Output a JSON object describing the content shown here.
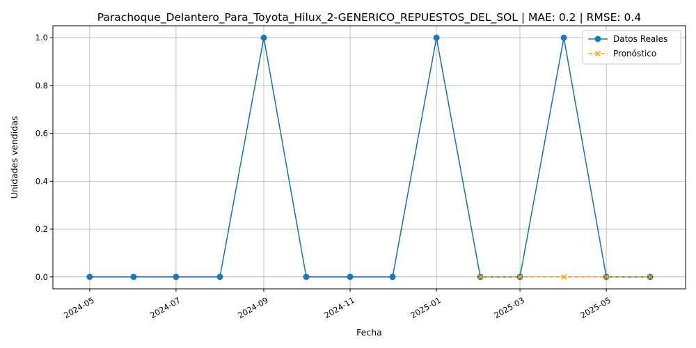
{
  "chart_data": {
    "type": "line",
    "title": "Parachoque_Delantero_Para_Toyota_Hilux_2-GENERICO_REPUESTOS_DEL_SOL | MAE: 0.2 | RMSE: 0.4",
    "xlabel": "Fecha",
    "ylabel": "Unidades vendidas",
    "x_tick_labels": [
      "2024-05",
      "2024-07",
      "2024-09",
      "2024-11",
      "2025-01",
      "2025-03",
      "2025-05"
    ],
    "x_tick_dates": [
      "2024-05-01",
      "2024-07-01",
      "2024-09-01",
      "2024-11-01",
      "2025-01-01",
      "2025-03-01",
      "2025-05-01"
    ],
    "y_ticks": [
      0.0,
      0.2,
      0.4,
      0.6,
      0.8,
      1.0
    ],
    "y_tick_labels": [
      "0.0",
      "0.2",
      "0.4",
      "0.6",
      "0.8",
      "1.0"
    ],
    "xlim": [
      "2024-04-05",
      "2025-06-26"
    ],
    "ylim": [
      -0.05,
      1.05
    ],
    "grid": true,
    "legend_position": "top-right",
    "series": [
      {
        "name": "Datos Reales",
        "color": "#1f77b4",
        "line_style": "solid",
        "marker": "circle",
        "points": [
          {
            "x": "2024-05-01",
            "y": 0
          },
          {
            "x": "2024-06-01",
            "y": 0
          },
          {
            "x": "2024-07-01",
            "y": 0
          },
          {
            "x": "2024-08-01",
            "y": 0
          },
          {
            "x": "2024-09-01",
            "y": 1
          },
          {
            "x": "2024-10-01",
            "y": 0
          },
          {
            "x": "2024-11-01",
            "y": 0
          },
          {
            "x": "2024-12-01",
            "y": 0
          },
          {
            "x": "2025-01-01",
            "y": 1
          },
          {
            "x": "2025-02-01",
            "y": 0
          },
          {
            "x": "2025-03-01",
            "y": 0
          },
          {
            "x": "2025-04-01",
            "y": 1
          },
          {
            "x": "2025-05-01",
            "y": 0
          },
          {
            "x": "2025-06-01",
            "y": 0
          }
        ]
      },
      {
        "name": "Pronóstico",
        "color": "#ffa500",
        "line_style": "dashed",
        "marker": "x",
        "points": [
          {
            "x": "2025-02-01",
            "y": 0
          },
          {
            "x": "2025-03-01",
            "y": 0
          },
          {
            "x": "2025-04-01",
            "y": 0
          },
          {
            "x": "2025-05-01",
            "y": 0
          },
          {
            "x": "2025-06-01",
            "y": 0
          }
        ]
      }
    ]
  }
}
